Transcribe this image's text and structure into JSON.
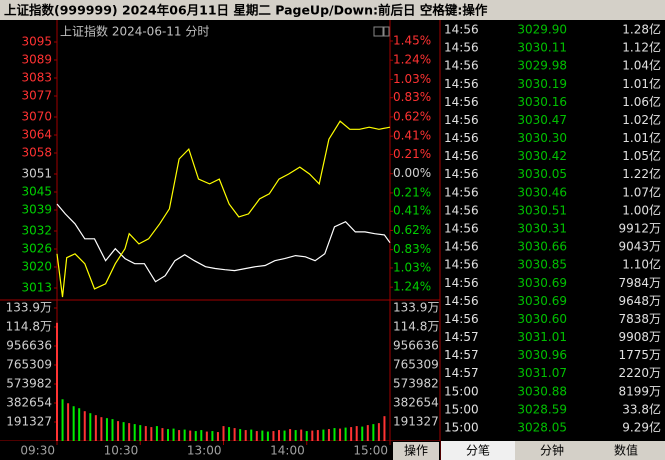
{
  "header": {
    "title": "上证指数(999999)  2024年06月11日 星期二 PageUp/Down:前后日 空格键:操作"
  },
  "chart_data": [
    {
      "type": "line",
      "title": "上证指数  2024-06-11 分时",
      "xlim": [
        0,
        240
      ],
      "xticks": [
        {
          "value": 0,
          "label": "09:30"
        },
        {
          "value": 60,
          "label": "10:30"
        },
        {
          "value": 120,
          "label": "13:00"
        },
        {
          "value": 180,
          "label": "14:00"
        },
        {
          "value": 240,
          "label": "15:00"
        }
      ],
      "ylim": [
        3009,
        3099
      ],
      "yticks": [
        3095,
        3089,
        3083,
        3077,
        3070,
        3064,
        3058,
        3051,
        3045,
        3039,
        3032,
        3026,
        3020,
        3013
      ],
      "y2lim": [
        -1.38,
        1.57
      ],
      "y2ticks": [
        {
          "value": 1.45,
          "label": "1.45%"
        },
        {
          "value": 1.24,
          "label": "1.24%"
        },
        {
          "value": 1.03,
          "label": "1.03%"
        },
        {
          "value": 0.83,
          "label": "0.83%"
        },
        {
          "value": 0.62,
          "label": "0.62%"
        },
        {
          "value": 0.41,
          "label": "0.41%"
        },
        {
          "value": 0.21,
          "label": "0.21%"
        },
        {
          "value": 0,
          "label": "0.00%"
        },
        {
          "value": -0.21,
          "label": "0.21%"
        },
        {
          "value": -0.41,
          "label": "0.41%"
        },
        {
          "value": -0.62,
          "label": "0.62%"
        },
        {
          "value": -0.83,
          "label": "0.83%"
        },
        {
          "value": -1.03,
          "label": "1.03%"
        },
        {
          "value": -1.24,
          "label": "1.24%"
        }
      ],
      "series": [
        {
          "color": "#ffffff",
          "x": [
            0,
            6,
            13,
            20,
            27,
            35,
            42,
            49,
            56,
            63,
            71,
            78,
            85,
            92,
            99,
            107,
            114,
            121,
            128,
            136,
            143,
            150,
            157,
            164,
            172,
            179,
            186,
            193,
            200,
            208,
            215,
            222,
            229,
            236,
            240
          ],
          "values": [
            3041.0,
            3037.7,
            3034.4,
            3029.4,
            3029.4,
            3022.1,
            3026.1,
            3022.8,
            3021.1,
            3021.1,
            3015.1,
            3017.1,
            3022.1,
            3024.1,
            3022.1,
            3020.1,
            3019.5,
            3019.1,
            3018.8,
            3019.5,
            3020.1,
            3020.5,
            3022.1,
            3022.8,
            3023.8,
            3023.4,
            3022.1,
            3024.4,
            3033.4,
            3035.1,
            3031.7,
            3031.7,
            3031.1,
            3030.7,
            3028.1
          ]
        },
        {
          "color": "#ffff00",
          "x": [
            0,
            4,
            7,
            13,
            20,
            27,
            35,
            42,
            49,
            52,
            59,
            66,
            74,
            81,
            88,
            95,
            102,
            110,
            117,
            124,
            131,
            138,
            146,
            153,
            160,
            167,
            175,
            182,
            189,
            196,
            204,
            211,
            218,
            225,
            232,
            240
          ],
          "values": [
            3024.4,
            3010.0,
            3023.1,
            3024.4,
            3021.1,
            3012.7,
            3014.4,
            3021.1,
            3026.1,
            3031.1,
            3027.7,
            3029.4,
            3034.4,
            3039.4,
            3056.0,
            3059.3,
            3049.3,
            3047.7,
            3049.3,
            3041.0,
            3036.7,
            3037.7,
            3042.7,
            3044.4,
            3049.3,
            3051.0,
            3053.3,
            3051.0,
            3047.7,
            3062.6,
            3068.6,
            3065.9,
            3065.9,
            3066.6,
            3065.9,
            3066.6
          ]
        }
      ]
    },
    {
      "type": "bar",
      "ylim": [
        0,
        1339000
      ],
      "yticks": [
        {
          "value": 1339000,
          "label": "133.9万"
        },
        {
          "value": 1148000,
          "label": "114.8万"
        },
        956636,
        765309,
        573982,
        382654,
        191327
      ],
      "x": [
        0,
        4,
        8,
        12,
        16,
        20,
        24,
        28,
        32,
        36,
        40,
        44,
        48,
        52,
        56,
        60,
        64,
        68,
        72,
        76,
        80,
        84,
        88,
        92,
        96,
        100,
        104,
        108,
        112,
        116,
        120,
        124,
        128,
        132,
        136,
        140,
        144,
        148,
        152,
        156,
        160,
        164,
        168,
        172,
        176,
        180,
        184,
        188,
        192,
        196,
        200,
        204,
        208,
        212,
        216,
        220,
        224,
        228,
        232,
        236
      ],
      "values": [
        1190000,
        420000,
        380000,
        350000,
        330000,
        300000,
        280000,
        260000,
        240000,
        230000,
        220000,
        200000,
        190000,
        180000,
        170000,
        160000,
        150000,
        140000,
        150000,
        130000,
        120000,
        125000,
        110000,
        115000,
        105000,
        100000,
        110000,
        95000,
        100000,
        90000,
        150000,
        140000,
        130000,
        120000,
        110000,
        115000,
        100000,
        105000,
        95000,
        100000,
        110000,
        105000,
        120000,
        110000,
        115000,
        100000,
        105000,
        110000,
        115000,
        120000,
        130000,
        125000,
        135000,
        140000,
        150000,
        145000,
        160000,
        170000,
        180000,
        250000
      ],
      "colors": [
        "#f33",
        "#0e0",
        "#f33",
        "#0e0",
        "#0e0",
        "#f33",
        "#0e0",
        "#f33",
        "#f33",
        "#0e0",
        "#0e0",
        "#f33",
        "#0e0",
        "#f33",
        "#0e0",
        "#0e0",
        "#f33",
        "#f33",
        "#0e0",
        "#f33",
        "#0e0",
        "#0e0",
        "#f33",
        "#0e0",
        "#f33",
        "#0e0",
        "#0e0",
        "#f33",
        "#0e0",
        "#f33",
        "#f33",
        "#0e0",
        "#f33",
        "#0e0",
        "#f33",
        "#0e0",
        "#f33",
        "#0e0",
        "#0e0",
        "#f33",
        "#f33",
        "#0e0",
        "#f33",
        "#0e0",
        "#f33",
        "#0e0",
        "#f33",
        "#f33",
        "#0e0",
        "#f33",
        "#0e0",
        "#f33",
        "#0e0",
        "#f33",
        "#f33",
        "#0e0",
        "#f33",
        "#0e0",
        "#f33",
        "#f33"
      ]
    }
  ],
  "trades": {
    "rows": [
      [
        "14:56",
        "3029.90",
        "1.28亿"
      ],
      [
        "14:56",
        "3030.11",
        "1.12亿"
      ],
      [
        "14:56",
        "3029.98",
        "1.04亿"
      ],
      [
        "14:56",
        "3030.19",
        "1.01亿"
      ],
      [
        "14:56",
        "3030.16",
        "1.06亿"
      ],
      [
        "14:56",
        "3030.47",
        "1.02亿"
      ],
      [
        "14:56",
        "3030.30",
        "1.01亿"
      ],
      [
        "14:56",
        "3030.42",
        "1.05亿"
      ],
      [
        "14:56",
        "3030.05",
        "1.22亿"
      ],
      [
        "14:56",
        "3030.46",
        "1.07亿"
      ],
      [
        "14:56",
        "3030.51",
        "1.00亿"
      ],
      [
        "14:56",
        "3030.31",
        "9912万"
      ],
      [
        "14:56",
        "3030.66",
        "9043万"
      ],
      [
        "14:56",
        "3030.85",
        "1.10亿"
      ],
      [
        "14:56",
        "3030.69",
        "7984万"
      ],
      [
        "14:56",
        "3030.69",
        "9648万"
      ],
      [
        "14:56",
        "3030.60",
        "7838万"
      ],
      [
        "14:57",
        "3031.01",
        "9908万"
      ],
      [
        "14:57",
        "3030.96",
        "1775万"
      ],
      [
        "14:57",
        "3031.07",
        "2220万"
      ],
      [
        "15:00",
        "3030.88",
        "8199万"
      ],
      [
        "15:00",
        "3028.59",
        "33.8亿"
      ],
      [
        "15:00",
        "3028.05",
        "9.29亿"
      ]
    ]
  },
  "tabs": [
    "分笔",
    "分钟",
    "数值"
  ],
  "button": "操作"
}
